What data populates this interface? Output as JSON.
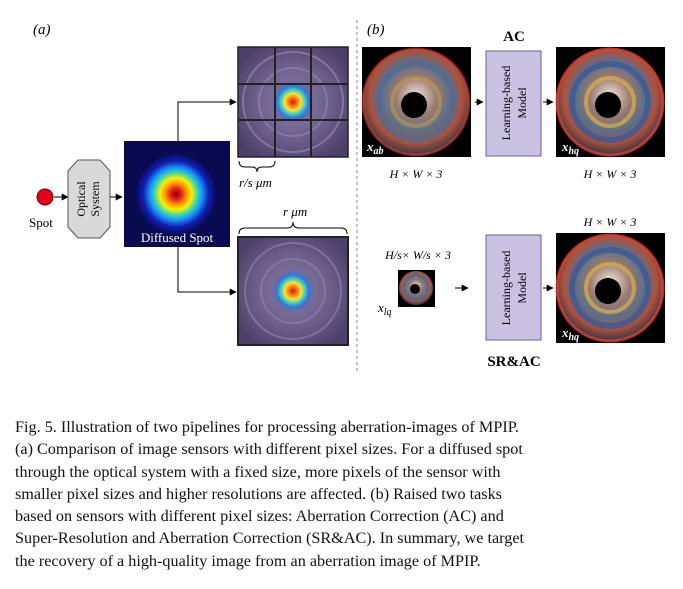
{
  "panel_a": {
    "label": "(a)",
    "spot_label": "Spot",
    "optical_line1": "Optical",
    "optical_line2": "System",
    "diffused_label": "Diffused Spot",
    "small_pixel_label": "r/s μm",
    "large_pixel_label": "r μm"
  },
  "panel_b": {
    "label": "(b)",
    "ac_title": "AC",
    "srac_title": "SR&AC",
    "model_line1": "Learning-based",
    "model_line2": "Model",
    "x_ab": "x",
    "x_ab_sub": "ab",
    "x_hq": "x",
    "x_hq_sub": "hq",
    "x_lq": "x",
    "x_lq_sub": "lq",
    "dim_full": "H × W × 3",
    "dim_low": "H/s× W/s × 3"
  },
  "caption": {
    "line1": "Fig. 5.  Illustration of two pipelines for processing aberration-images of MPIP.",
    "line2": "(a) Comparison of image sensors with different pixel sizes. For a diffused spot",
    "line3": "through the optical system with a fixed size, more pixels of the sensor with",
    "line4": "smaller pixel sizes and higher resolutions are affected. (b) Raised two tasks",
    "line5": "based on sensors with different pixel sizes: Aberration Correction (AC) and",
    "line6": "Super-Resolution and Aberration Correction (SR&AC). In summary, we target",
    "line7": "the recovery of a high-quality image from an aberration image of MPIP."
  },
  "colors": {
    "spot": "#e3001b",
    "model_box": "#c9c2e3",
    "optical_box": "#d9d9d9",
    "sensor_bg": "#4e3e6a",
    "divider": "#888888"
  }
}
